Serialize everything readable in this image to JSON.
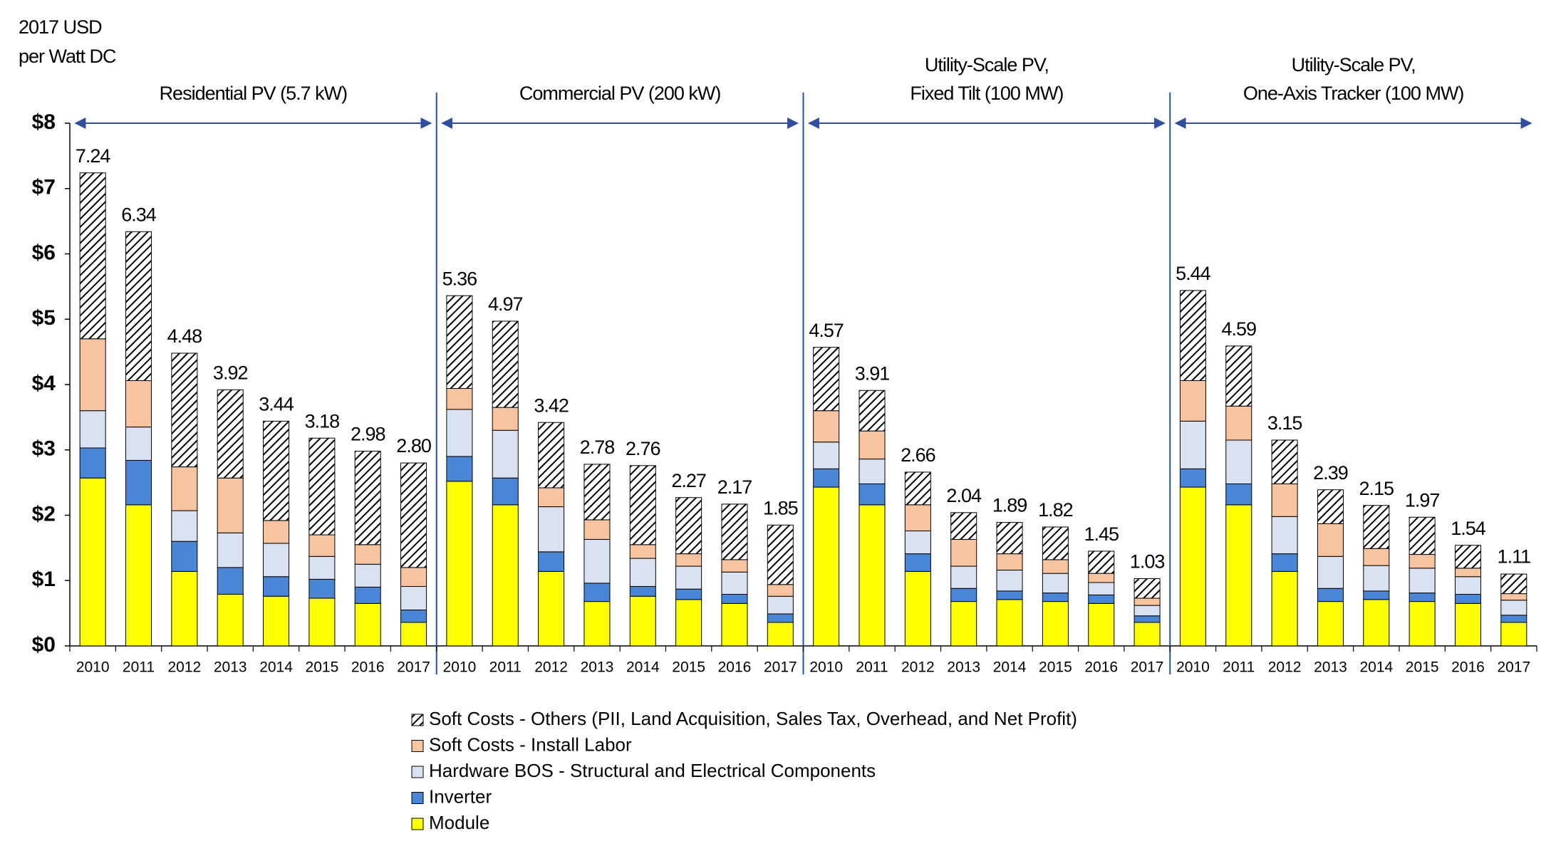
{
  "chart_data": {
    "type": "stacked_bar",
    "ylabel": [
      "2017 USD",
      "per Watt DC"
    ],
    "ylim": [
      0,
      8
    ],
    "yticks": [
      {
        "value": 0,
        "label": "$0"
      },
      {
        "value": 1,
        "label": "$1"
      },
      {
        "value": 2,
        "label": "$2"
      },
      {
        "value": 3,
        "label": "$3"
      },
      {
        "value": 4,
        "label": "$4"
      },
      {
        "value": 5,
        "label": "$5"
      },
      {
        "value": 6,
        "label": "$6"
      },
      {
        "value": 7,
        "label": "$7"
      },
      {
        "value": 8,
        "label": "$8"
      }
    ],
    "series": [
      {
        "name": "Module",
        "color": "#ffff00"
      },
      {
        "name": "Inverter",
        "color": "#4a86d8"
      },
      {
        "name": "Hardware BOS - Structural and Electrical Components",
        "color": "#d9e2f3"
      },
      {
        "name": "Soft Costs - Install Labor",
        "color": "#f8c4a0"
      },
      {
        "name": "Soft Costs - Others (PII, Land Acquisition, Sales Tax, Overhead, and Net Profit)",
        "color": "#ffffff",
        "pattern": "hatch"
      }
    ],
    "panels": [
      {
        "title": [
          "Residential PV (5.7 kW)"
        ],
        "categories": [
          "2010",
          "2011",
          "2012",
          "2013",
          "2014",
          "2015",
          "2016",
          "2017"
        ],
        "values": [
          [
            2.57,
            2.16,
            1.14,
            0.79,
            0.76,
            0.73,
            0.65,
            0.36
          ],
          [
            0.46,
            0.68,
            0.46,
            0.41,
            0.3,
            0.29,
            0.25,
            0.19
          ],
          [
            0.57,
            0.51,
            0.47,
            0.53,
            0.51,
            0.35,
            0.35,
            0.36
          ],
          [
            1.1,
            0.71,
            0.67,
            0.84,
            0.35,
            0.33,
            0.3,
            0.29
          ],
          [
            2.54,
            2.28,
            1.74,
            1.35,
            1.52,
            1.48,
            1.43,
            1.6
          ]
        ],
        "totals": [
          7.24,
          6.34,
          4.48,
          3.92,
          3.44,
          3.18,
          2.98,
          2.8
        ],
        "total_labels": [
          "7.24",
          "6.34",
          "4.48",
          "3.92",
          "3.44",
          "3.18",
          "2.98",
          "2.80"
        ]
      },
      {
        "title": [
          "Commercial PV (200 kW)"
        ],
        "categories": [
          "2010",
          "2011",
          "2012",
          "2013",
          "2014",
          "2015",
          "2016",
          "2017"
        ],
        "values": [
          [
            2.52,
            2.16,
            1.14,
            0.68,
            0.76,
            0.71,
            0.65,
            0.36
          ],
          [
            0.38,
            0.41,
            0.3,
            0.28,
            0.15,
            0.16,
            0.14,
            0.13
          ],
          [
            0.72,
            0.73,
            0.69,
            0.67,
            0.43,
            0.35,
            0.34,
            0.27
          ],
          [
            0.32,
            0.35,
            0.29,
            0.3,
            0.21,
            0.19,
            0.19,
            0.18
          ],
          [
            1.42,
            1.32,
            1.0,
            0.85,
            1.21,
            0.86,
            0.85,
            0.91
          ]
        ],
        "totals": [
          5.36,
          4.97,
          3.42,
          2.78,
          2.76,
          2.27,
          2.17,
          1.85
        ],
        "total_labels": [
          "5.36",
          "4.97",
          "3.42",
          "2.78",
          "2.76",
          "2.27",
          "2.17",
          "1.85"
        ]
      },
      {
        "title": [
          "Utility-Scale PV,",
          "Fixed Tilt (100 MW)"
        ],
        "categories": [
          "2010",
          "2011",
          "2012",
          "2013",
          "2014",
          "2015",
          "2016",
          "2017"
        ],
        "values": [
          [
            2.43,
            2.16,
            1.14,
            0.68,
            0.71,
            0.68,
            0.65,
            0.36
          ],
          [
            0.28,
            0.32,
            0.27,
            0.2,
            0.13,
            0.13,
            0.13,
            0.1
          ],
          [
            0.41,
            0.38,
            0.35,
            0.34,
            0.32,
            0.3,
            0.19,
            0.16
          ],
          [
            0.48,
            0.43,
            0.4,
            0.41,
            0.25,
            0.21,
            0.14,
            0.11
          ],
          [
            0.97,
            0.62,
            0.5,
            0.41,
            0.48,
            0.5,
            0.34,
            0.3
          ]
        ],
        "totals": [
          4.57,
          3.91,
          2.66,
          2.04,
          1.89,
          1.82,
          1.45,
          1.03
        ],
        "total_labels": [
          "4.57",
          "3.91",
          "2.66",
          "2.04",
          "1.89",
          "1.82",
          "1.45",
          "1.03"
        ]
      },
      {
        "title": [
          "Utility-Scale PV,",
          "One-Axis Tracker (100 MW)"
        ],
        "categories": [
          "2010",
          "2011",
          "2012",
          "2013",
          "2014",
          "2015",
          "2016",
          "2017"
        ],
        "values": [
          [
            2.43,
            2.16,
            1.14,
            0.68,
            0.71,
            0.68,
            0.65,
            0.36
          ],
          [
            0.28,
            0.32,
            0.27,
            0.2,
            0.13,
            0.13,
            0.14,
            0.11
          ],
          [
            0.73,
            0.67,
            0.57,
            0.49,
            0.39,
            0.38,
            0.27,
            0.23
          ],
          [
            0.62,
            0.52,
            0.5,
            0.5,
            0.26,
            0.21,
            0.13,
            0.1
          ],
          [
            1.38,
            0.92,
            0.67,
            0.52,
            0.66,
            0.57,
            0.35,
            0.3
          ]
        ],
        "totals": [
          5.44,
          4.59,
          3.15,
          2.39,
          2.15,
          1.97,
          1.54,
          1.11
        ],
        "total_labels": [
          "5.44",
          "4.59",
          "3.15",
          "2.39",
          "2.15",
          "1.97",
          "1.54",
          "1.11"
        ]
      }
    ]
  }
}
